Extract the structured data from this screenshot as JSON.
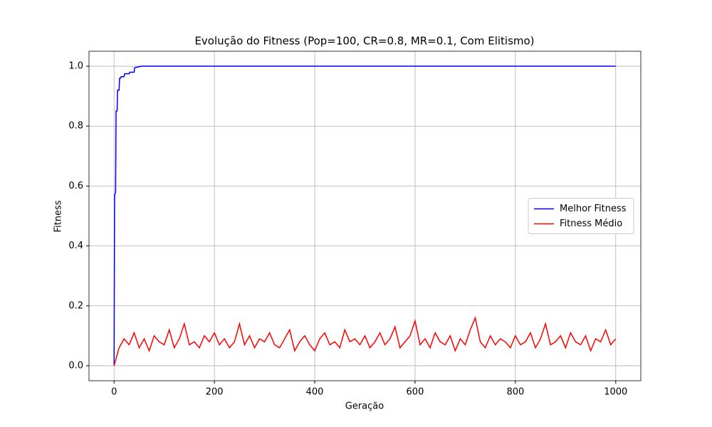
{
  "chart_data": {
    "type": "line",
    "title": "Evolução do Fitness (Pop=100, CR=0.8, MR=0.1, Com Elitismo)",
    "x_label": "Geração",
    "y_label": "Fitness",
    "xlim": [
      -50,
      1050
    ],
    "ylim": [
      -0.05,
      1.05
    ],
    "xticks": [
      0,
      200,
      400,
      600,
      800,
      1000
    ],
    "yticks": [
      {
        "value": 0.0,
        "label": "0.0"
      },
      0.2,
      0.4,
      0.6,
      0.8,
      {
        "value": 1.0,
        "label": "1.0"
      }
    ],
    "grid": true,
    "legend": "center right",
    "series": [
      {
        "name": "Melhor Fitness",
        "color": "#0000ff",
        "x": [
          0,
          1,
          3,
          4,
          6,
          7,
          10,
          11,
          13,
          14,
          20,
          21,
          30,
          31,
          40,
          41,
          55,
          1000
        ],
        "values": [
          0.0,
          0.57,
          0.58,
          0.85,
          0.85,
          0.92,
          0.92,
          0.96,
          0.96,
          0.965,
          0.965,
          0.975,
          0.975,
          0.98,
          0.98,
          0.995,
          1.0,
          1.0
        ]
      },
      {
        "name": "Fitness Médio",
        "color": "#ff0000",
        "x": [
          0,
          10,
          20,
          30,
          40,
          50,
          60,
          70,
          80,
          90,
          100,
          110,
          120,
          130,
          140,
          150,
          160,
          170,
          180,
          190,
          200,
          210,
          220,
          230,
          240,
          250,
          260,
          270,
          280,
          290,
          300,
          310,
          320,
          330,
          340,
          350,
          360,
          370,
          380,
          390,
          400,
          410,
          420,
          430,
          440,
          450,
          460,
          470,
          480,
          490,
          500,
          510,
          520,
          530,
          540,
          550,
          560,
          570,
          580,
          590,
          600,
          610,
          620,
          630,
          640,
          650,
          660,
          670,
          680,
          690,
          700,
          710,
          720,
          730,
          740,
          750,
          760,
          770,
          780,
          790,
          800,
          810,
          820,
          830,
          840,
          850,
          860,
          870,
          880,
          890,
          900,
          910,
          920,
          930,
          940,
          950,
          960,
          970,
          980,
          990,
          1000
        ],
        "values": [
          0.0,
          0.06,
          0.09,
          0.07,
          0.11,
          0.06,
          0.09,
          0.05,
          0.1,
          0.08,
          0.07,
          0.12,
          0.06,
          0.09,
          0.14,
          0.07,
          0.08,
          0.06,
          0.1,
          0.08,
          0.11,
          0.07,
          0.09,
          0.06,
          0.08,
          0.14,
          0.07,
          0.1,
          0.06,
          0.09,
          0.08,
          0.11,
          0.07,
          0.06,
          0.09,
          0.12,
          0.05,
          0.08,
          0.1,
          0.07,
          0.05,
          0.09,
          0.11,
          0.07,
          0.08,
          0.06,
          0.12,
          0.08,
          0.09,
          0.07,
          0.1,
          0.06,
          0.08,
          0.11,
          0.07,
          0.09,
          0.13,
          0.06,
          0.08,
          0.1,
          0.15,
          0.07,
          0.09,
          0.06,
          0.11,
          0.08,
          0.07,
          0.1,
          0.05,
          0.09,
          0.07,
          0.12,
          0.16,
          0.08,
          0.06,
          0.1,
          0.07,
          0.09,
          0.08,
          0.06,
          0.1,
          0.07,
          0.08,
          0.11,
          0.06,
          0.09,
          0.14,
          0.07,
          0.08,
          0.1,
          0.06,
          0.11,
          0.08,
          0.07,
          0.1,
          0.05,
          0.09,
          0.08,
          0.12,
          0.07,
          0.09
        ]
      }
    ]
  }
}
